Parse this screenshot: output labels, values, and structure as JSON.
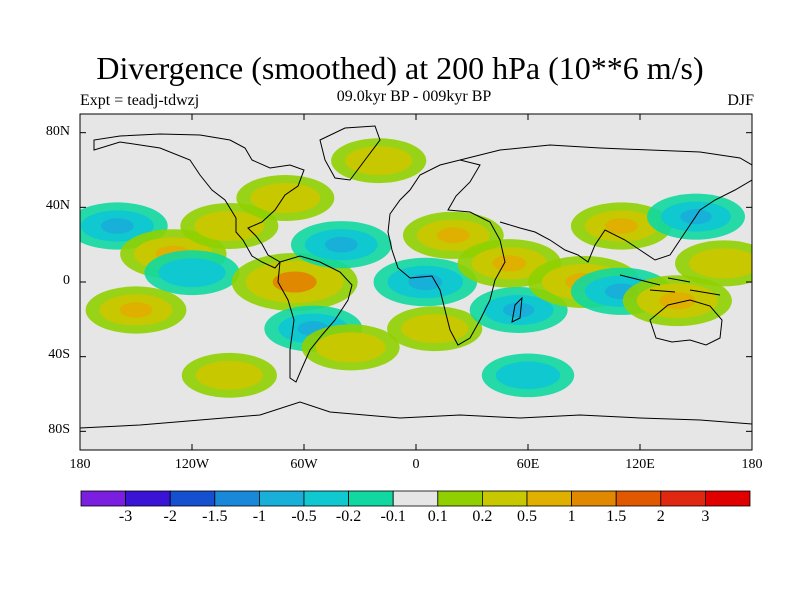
{
  "title": "Divergence (smoothed) at 200 hPa (10**6 m/s)",
  "experiment": "Expt = teadj-tdwzj",
  "period": "09.0kyr BP - 009kyr BP",
  "season": "DJF",
  "axes": {
    "lon_labels": [
      "180",
      "120W",
      "60W",
      "0",
      "60E",
      "120E",
      "180"
    ],
    "lat_labels": [
      "80N",
      "40N",
      "0",
      "40S",
      "80S"
    ]
  },
  "colorbar": {
    "labels": [
      "-3",
      "-2",
      "-1.5",
      "-1",
      "-0.5",
      "-0.2",
      "-0.1",
      "0.1",
      "0.2",
      "0.5",
      "1",
      "1.5",
      "2",
      "3"
    ],
    "colors": [
      "#7a1fe0",
      "#3a14d6",
      "#1450d0",
      "#1a88d8",
      "#18b0d8",
      "#10c8d0",
      "#10d8a0",
      "#e6e6e6",
      "#90d000",
      "#c8c800",
      "#e0b000",
      "#e08800",
      "#e05800",
      "#e02810",
      "#e00000"
    ]
  },
  "chart_data": {
    "type": "heatmap",
    "title": "Divergence (smoothed) at 200 hPa (10**6 m/s)",
    "subtitle": "09.0kyr BP - 009kyr BP",
    "experiment": "Expt = teadj-tdwzj",
    "season": "DJF",
    "x_range_lon": [
      -180,
      180
    ],
    "y_range_lat": [
      -90,
      90
    ],
    "levels": [
      -3,
      -2,
      -1.5,
      -1,
      -0.5,
      -0.2,
      -0.1,
      0.1,
      0.2,
      0.5,
      1,
      1.5,
      2,
      3
    ],
    "anomaly_centers": [
      {
        "lon": -160,
        "lat": 30,
        "value": -0.6
      },
      {
        "lon": -130,
        "lat": 15,
        "value": 0.8
      },
      {
        "lon": -150,
        "lat": -15,
        "value": 0.6
      },
      {
        "lon": -120,
        "lat": 5,
        "value": -0.4
      },
      {
        "lon": -100,
        "lat": 30,
        "value": 0.5
      },
      {
        "lon": -70,
        "lat": 45,
        "value": 0.5
      },
      {
        "lon": -65,
        "lat": 0,
        "value": 1.5
      },
      {
        "lon": -40,
        "lat": 20,
        "value": -0.6
      },
      {
        "lon": -55,
        "lat": -25,
        "value": -0.5
      },
      {
        "lon": -35,
        "lat": -35,
        "value": 0.5
      },
      {
        "lon": 5,
        "lat": 0,
        "value": -0.7
      },
      {
        "lon": 20,
        "lat": 25,
        "value": 0.6
      },
      {
        "lon": 10,
        "lat": -25,
        "value": 0.4
      },
      {
        "lon": 50,
        "lat": 10,
        "value": 0.7
      },
      {
        "lon": 55,
        "lat": -15,
        "value": -0.5
      },
      {
        "lon": 90,
        "lat": 0,
        "value": 1.0
      },
      {
        "lon": 110,
        "lat": 30,
        "value": 0.6
      },
      {
        "lon": 110,
        "lat": -5,
        "value": -0.6
      },
      {
        "lon": 140,
        "lat": -10,
        "value": 0.9
      },
      {
        "lon": 150,
        "lat": 35,
        "value": -0.5
      },
      {
        "lon": 165,
        "lat": 10,
        "value": 0.5
      },
      {
        "lon": -20,
        "lat": 65,
        "value": 0.4
      },
      {
        "lon": -100,
        "lat": -50,
        "value": 0.4
      },
      {
        "lon": 60,
        "lat": -50,
        "value": -0.3
      }
    ]
  }
}
